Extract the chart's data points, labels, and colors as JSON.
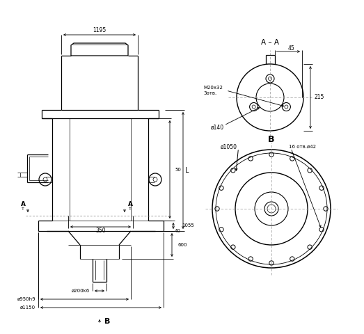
{
  "bg": "#ffffff",
  "lc": "#000000",
  "fig_w": 5.23,
  "fig_h": 4.8,
  "dpi": 100,
  "labels": {
    "dim_1195": "1195",
    "dim_350": "350",
    "dim_1055": "1055",
    "dim_50": "50",
    "dim_40": "40",
    "dim_600": "600",
    "dim_L": "L",
    "dim_d200": "ø200k6",
    "dim_d950": "ø950h9",
    "dim_d1150": "ø1150",
    "dim_d1050": "ø1050",
    "dim_bolts_b": "16 отв.ø42",
    "label_B": "B",
    "label_A": "A",
    "label_AA": "A – A",
    "dim_45": "45",
    "dim_215": "215",
    "dim_d140": "ø140",
    "dim_M20": "M20x32",
    "dim_3otv": "3отв."
  }
}
